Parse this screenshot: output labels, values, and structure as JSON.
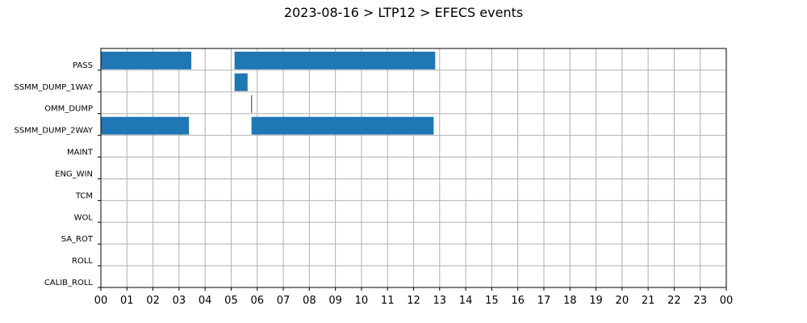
{
  "chart_data": {
    "type": "bar",
    "orientation": "horizontal",
    "title": "2023-08-16 > LTP12 > EFECS events",
    "xlabel": "",
    "ylabel": "",
    "xlim": [
      0,
      24
    ],
    "grid": true,
    "bar_color": "#1f77b4",
    "categories": [
      "PASS",
      "SSMM_DUMP_1WAY",
      "OMM_DUMP",
      "SSMM_DUMP_2WAY",
      "MAINT",
      "ENG_WIN",
      "TCM",
      "WOL",
      "SA_ROT",
      "ROLL",
      "CALIB_ROLL"
    ],
    "x_tick_labels": [
      "00",
      "01",
      "02",
      "03",
      "04",
      "05",
      "06",
      "07",
      "08",
      "09",
      "10",
      "11",
      "12",
      "13",
      "14",
      "15",
      "16",
      "17",
      "18",
      "19",
      "20",
      "21",
      "22",
      "23",
      "00"
    ],
    "events": [
      {
        "category": "PASS",
        "start": 0.0,
        "end": 3.47
      },
      {
        "category": "PASS",
        "start": 5.13,
        "end": 12.83
      },
      {
        "category": "SSMM_DUMP_1WAY",
        "start": 5.13,
        "end": 5.63
      },
      {
        "category": "OMM_DUMP",
        "start": 5.76,
        "end": 5.8
      },
      {
        "category": "SSMM_DUMP_2WAY",
        "start": 0.0,
        "end": 3.38
      },
      {
        "category": "SSMM_DUMP_2WAY",
        "start": 5.78,
        "end": 12.77
      }
    ]
  }
}
